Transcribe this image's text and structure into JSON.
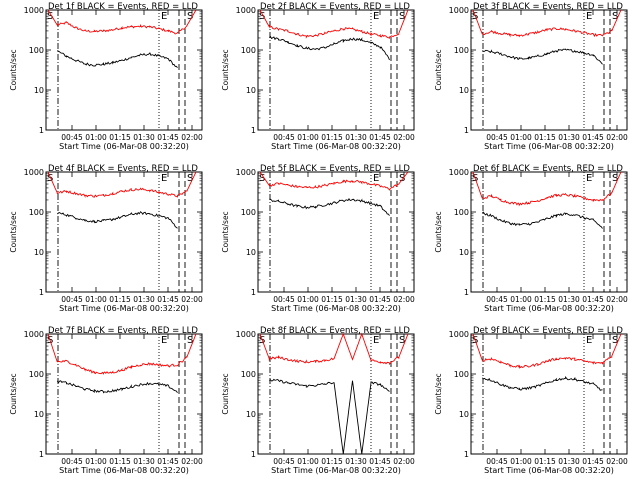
{
  "chart_data": [
    {
      "type": "line",
      "title": "Det 1f BLACK = Events, RED = LLD",
      "xlabel": "Start Time (06-Mar-08 00:32:20)",
      "ylabel": "Counts/sec",
      "x_ticks": [
        "00:45",
        "01:00",
        "01:15",
        "01:30",
        "01:45",
        "02:00"
      ],
      "y_ticks": [
        "1",
        "10",
        "100",
        "1000"
      ],
      "yscale": "log",
      "ylim": [
        1,
        1000
      ],
      "markers": {
        "start": "S",
        "end": "E",
        "s2": "S"
      },
      "series": [
        {
          "color": "#ff0000",
          "values": [
            1000,
            420,
            480,
            360,
            300,
            290,
            300,
            320,
            360,
            380,
            390,
            380,
            340,
            300,
            260,
            400,
            1000
          ]
        },
        {
          "color": "#000000",
          "values": [
            null,
            95,
            70,
            55,
            45,
            42,
            44,
            48,
            55,
            65,
            75,
            80,
            70,
            60,
            35,
            null,
            null
          ]
        }
      ]
    },
    {
      "type": "line",
      "title": "Det 2f BLACK = Events, RED = LLD",
      "xlabel": "Start Time (06-Mar-08 00:32:20)",
      "ylabel": "Counts/sec",
      "x_ticks": [
        "00:45",
        "01:00",
        "01:15",
        "01:30",
        "01:45",
        "02:00"
      ],
      "y_ticks": [
        "1",
        "10",
        "100",
        "1000"
      ],
      "yscale": "log",
      "ylim": [
        1,
        1000
      ],
      "markers": {
        "start": "S",
        "end": "E",
        "s2": "S"
      },
      "series": [
        {
          "color": "#ff0000",
          "values": [
            1000,
            380,
            330,
            300,
            250,
            220,
            230,
            260,
            300,
            340,
            330,
            290,
            250,
            230,
            210,
            260,
            1000
          ]
        },
        {
          "color": "#000000",
          "values": [
            null,
            210,
            190,
            160,
            130,
            110,
            105,
            115,
            140,
            170,
            190,
            180,
            150,
            120,
            60,
            null,
            null
          ]
        }
      ]
    },
    {
      "type": "line",
      "title": "Det 3f BLACK = Events, RED = LLD",
      "xlabel": "Start Time (06-Mar-08 00:32:20)",
      "ylabel": "Counts/sec",
      "x_ticks": [
        "00:45",
        "01:00",
        "01:15",
        "01:30",
        "01:45",
        "02:00"
      ],
      "y_ticks": [
        "1",
        "10",
        "100",
        "1000"
      ],
      "yscale": "log",
      "ylim": [
        1,
        1000
      ],
      "markers": {
        "start": "S",
        "end": "E",
        "s2": "S"
      },
      "series": [
        {
          "color": "#ff0000",
          "values": [
            1000,
            250,
            290,
            260,
            240,
            230,
            250,
            280,
            320,
            340,
            330,
            300,
            270,
            240,
            230,
            300,
            1000
          ]
        },
        {
          "color": "#000000",
          "values": [
            null,
            95,
            90,
            80,
            68,
            60,
            62,
            70,
            80,
            95,
            100,
            95,
            85,
            75,
            45,
            null,
            null
          ]
        }
      ]
    },
    {
      "type": "line",
      "title": "Det 4f BLACK = Events, RED = LLD",
      "xlabel": "Start Time (06-Mar-08 00:32:20)",
      "ylabel": "Counts/sec",
      "x_ticks": [
        "00:45",
        "01:00",
        "01:15",
        "01:30",
        "01:45",
        "02:00"
      ],
      "y_ticks": [
        "1",
        "10",
        "100",
        "1000"
      ],
      "yscale": "log",
      "ylim": [
        1,
        1000
      ],
      "markers": {
        "start": "S",
        "end": "E",
        "s2": "S"
      },
      "series": [
        {
          "color": "#ff0000",
          "values": [
            1000,
            300,
            330,
            290,
            260,
            250,
            260,
            290,
            330,
            360,
            370,
            350,
            310,
            280,
            250,
            330,
            1000
          ]
        },
        {
          "color": "#000000",
          "values": [
            null,
            95,
            85,
            72,
            62,
            58,
            60,
            66,
            75,
            88,
            95,
            90,
            80,
            70,
            40,
            null,
            null
          ]
        }
      ]
    },
    {
      "type": "line",
      "title": "Det 5f BLACK = Events, RED = LLD",
      "xlabel": "Start Time (06-Mar-08 00:32:20)",
      "ylabel": "Counts/sec",
      "x_ticks": [
        "00:45",
        "01:00",
        "01:15",
        "01:30",
        "01:45",
        "02:00"
      ],
      "y_ticks": [
        "1",
        "10",
        "100",
        "1000"
      ],
      "yscale": "log",
      "ylim": [
        1,
        1000
      ],
      "markers": {
        "start": "S",
        "end": "E",
        "s2": "S"
      },
      "series": [
        {
          "color": "#ff0000",
          "values": [
            1000,
            460,
            520,
            470,
            430,
            410,
            420,
            460,
            520,
            580,
            600,
            560,
            500,
            440,
            380,
            500,
            1000
          ]
        },
        {
          "color": "#000000",
          "values": [
            null,
            200,
            185,
            160,
            140,
            130,
            135,
            150,
            170,
            195,
            205,
            190,
            165,
            140,
            80,
            null,
            null
          ]
        }
      ]
    },
    {
      "type": "line",
      "title": "Det 6f BLACK = Events, RED = LLD",
      "xlabel": "Start Time (06-Mar-08 00:32:20)",
      "ylabel": "Counts/sec",
      "x_ticks": [
        "00:45",
        "01:00",
        "01:15",
        "01:30",
        "01:45",
        "02:00"
      ],
      "y_ticks": [
        "1",
        "10",
        "100",
        "1000"
      ],
      "yscale": "log",
      "ylim": [
        1,
        1000
      ],
      "markers": {
        "start": "S",
        "end": "E",
        "s2": "S"
      },
      "series": [
        {
          "color": "#ff0000",
          "values": [
            1000,
            220,
            250,
            200,
            170,
            160,
            170,
            190,
            230,
            260,
            270,
            250,
            220,
            200,
            200,
            300,
            1000
          ]
        },
        {
          "color": "#000000",
          "values": [
            null,
            95,
            80,
            62,
            52,
            48,
            50,
            56,
            68,
            82,
            90,
            85,
            72,
            62,
            40,
            null,
            null
          ]
        }
      ]
    },
    {
      "type": "line",
      "title": "Det 7f BLACK = Events, RED = LLD",
      "xlabel": "Start Time (06-Mar-08 00:32:20)",
      "ylabel": "Counts/sec",
      "x_ticks": [
        "00:45",
        "01:00",
        "01:15",
        "01:30",
        "01:45",
        "02:00"
      ],
      "y_ticks": [
        "1",
        "10",
        "100",
        "1000"
      ],
      "yscale": "log",
      "ylim": [
        1,
        1000
      ],
      "markers": {
        "start": "S",
        "end": "E",
        "s2": "S"
      },
      "series": [
        {
          "color": "#ff0000",
          "values": [
            1000,
            200,
            210,
            170,
            130,
            110,
            105,
            110,
            125,
            150,
            170,
            180,
            170,
            160,
            170,
            260,
            1000
          ]
        },
        {
          "color": "#000000",
          "values": [
            null,
            65,
            60,
            50,
            42,
            38,
            36,
            38,
            42,
            48,
            55,
            58,
            55,
            50,
            35,
            null,
            null
          ]
        }
      ]
    },
    {
      "type": "line",
      "title": "Det 8f BLACK = Events, RED = LLD",
      "xlabel": "Start Time (06-Mar-08 00:32:20)",
      "ylabel": "Counts/sec",
      "x_ticks": [
        "00:45",
        "01:00",
        "01:15",
        "01:30",
        "01:45",
        "02:00"
      ],
      "y_ticks": [
        "1",
        "10",
        "100",
        "1000"
      ],
      "yscale": "log",
      "ylim": [
        1,
        1000
      ],
      "markers": {
        "start": "S",
        "end": "E",
        "s2": "S"
      },
      "series": [
        {
          "color": "#ff0000",
          "values": [
            1000,
            240,
            260,
            230,
            210,
            200,
            205,
            220,
            240,
            1000,
            230,
            1000,
            220,
            200,
            190,
            260,
            1000
          ]
        },
        {
          "color": "#000000",
          "values": [
            null,
            70,
            68,
            60,
            55,
            50,
            52,
            56,
            62,
            1,
            68,
            1,
            60,
            55,
            35,
            null,
            null
          ]
        }
      ]
    },
    {
      "type": "line",
      "title": "Det 9f BLACK = Events, RED = LLD",
      "xlabel": "Start Time (06-Mar-08 00:32:20)",
      "ylabel": "Counts/sec",
      "x_ticks": [
        "00:45",
        "01:00",
        "01:15",
        "01:30",
        "01:45",
        "02:00"
      ],
      "y_ticks": [
        "1",
        "10",
        "100",
        "1000"
      ],
      "yscale": "log",
      "ylim": [
        1,
        1000
      ],
      "markers": {
        "start": "S",
        "end": "E",
        "s2": "S"
      },
      "series": [
        {
          "color": "#ff0000",
          "values": [
            1000,
            220,
            240,
            200,
            165,
            150,
            155,
            175,
            210,
            240,
            250,
            235,
            210,
            190,
            190,
            280,
            1000
          ]
        },
        {
          "color": "#000000",
          "values": [
            null,
            80,
            70,
            55,
            46,
            42,
            44,
            50,
            60,
            72,
            78,
            74,
            64,
            56,
            38,
            null,
            null
          ]
        }
      ]
    }
  ]
}
